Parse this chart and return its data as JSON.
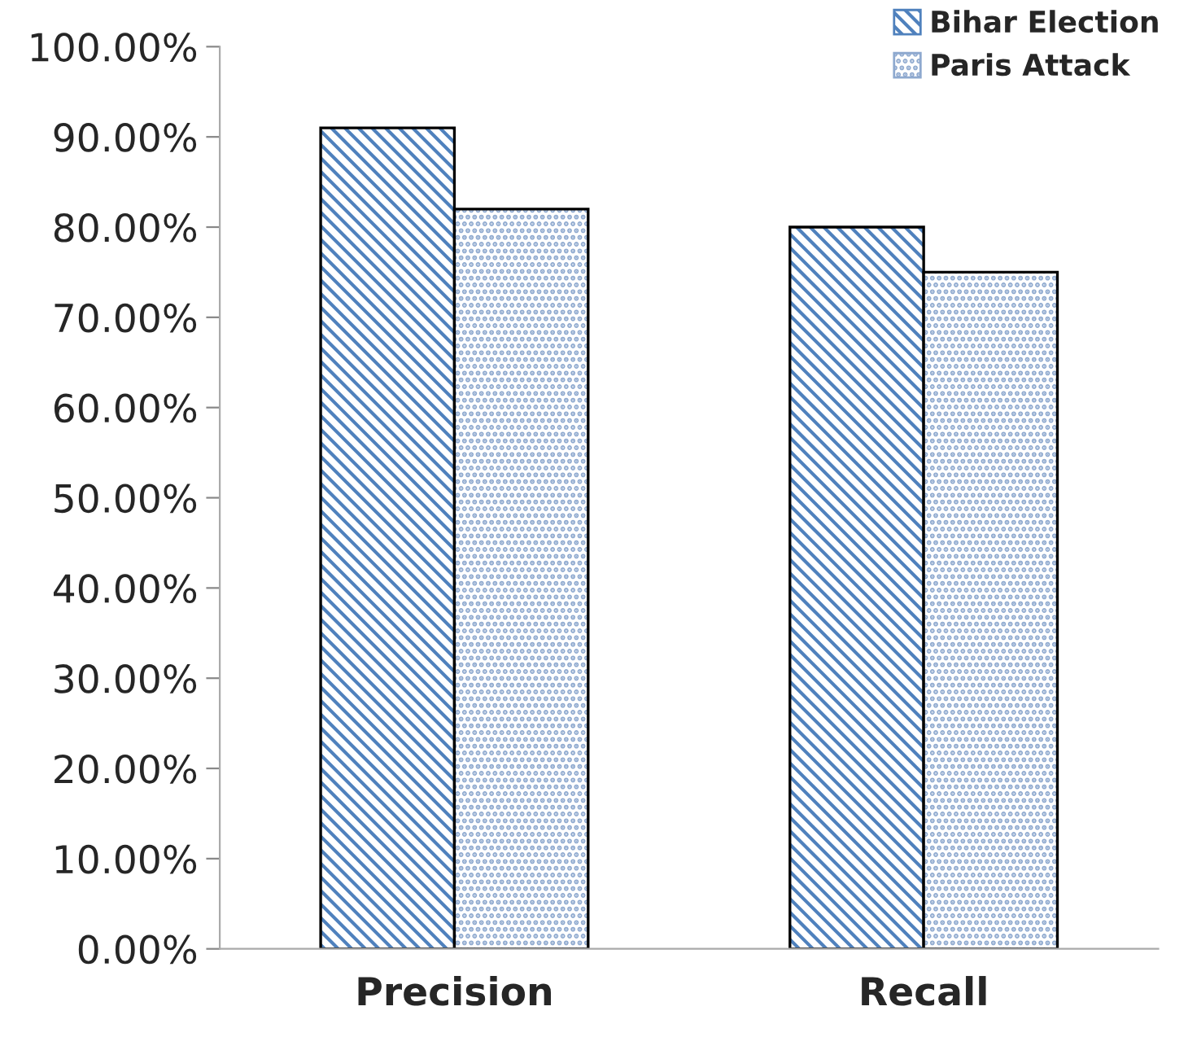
{
  "chart_data": {
    "type": "bar",
    "categories": [
      "Precision",
      "Recall"
    ],
    "series": [
      {
        "name": "Bihar Election",
        "color": "#4f81bd",
        "values": [
          91,
          80
        ]
      },
      {
        "name": "Paris Attack",
        "color": "#8ea9cf",
        "values": [
          82,
          75
        ]
      }
    ],
    "ylim": [
      0,
      100
    ],
    "yticks": [
      {
        "value": 0,
        "label": "0.00%"
      },
      {
        "value": 10,
        "label": "10.00%"
      },
      {
        "value": 20,
        "label": "20.00%"
      },
      {
        "value": 30,
        "label": "30.00%"
      },
      {
        "value": 40,
        "label": "40.00%"
      },
      {
        "value": 50,
        "label": "50.00%"
      },
      {
        "value": 60,
        "label": "60.00%"
      },
      {
        "value": 70,
        "label": "70.00%"
      },
      {
        "value": 80,
        "label": "80.00%"
      },
      {
        "value": 90,
        "label": "90.00%"
      },
      {
        "value": 100,
        "label": "100.00%"
      }
    ],
    "grid": false,
    "legend": "top right"
  }
}
